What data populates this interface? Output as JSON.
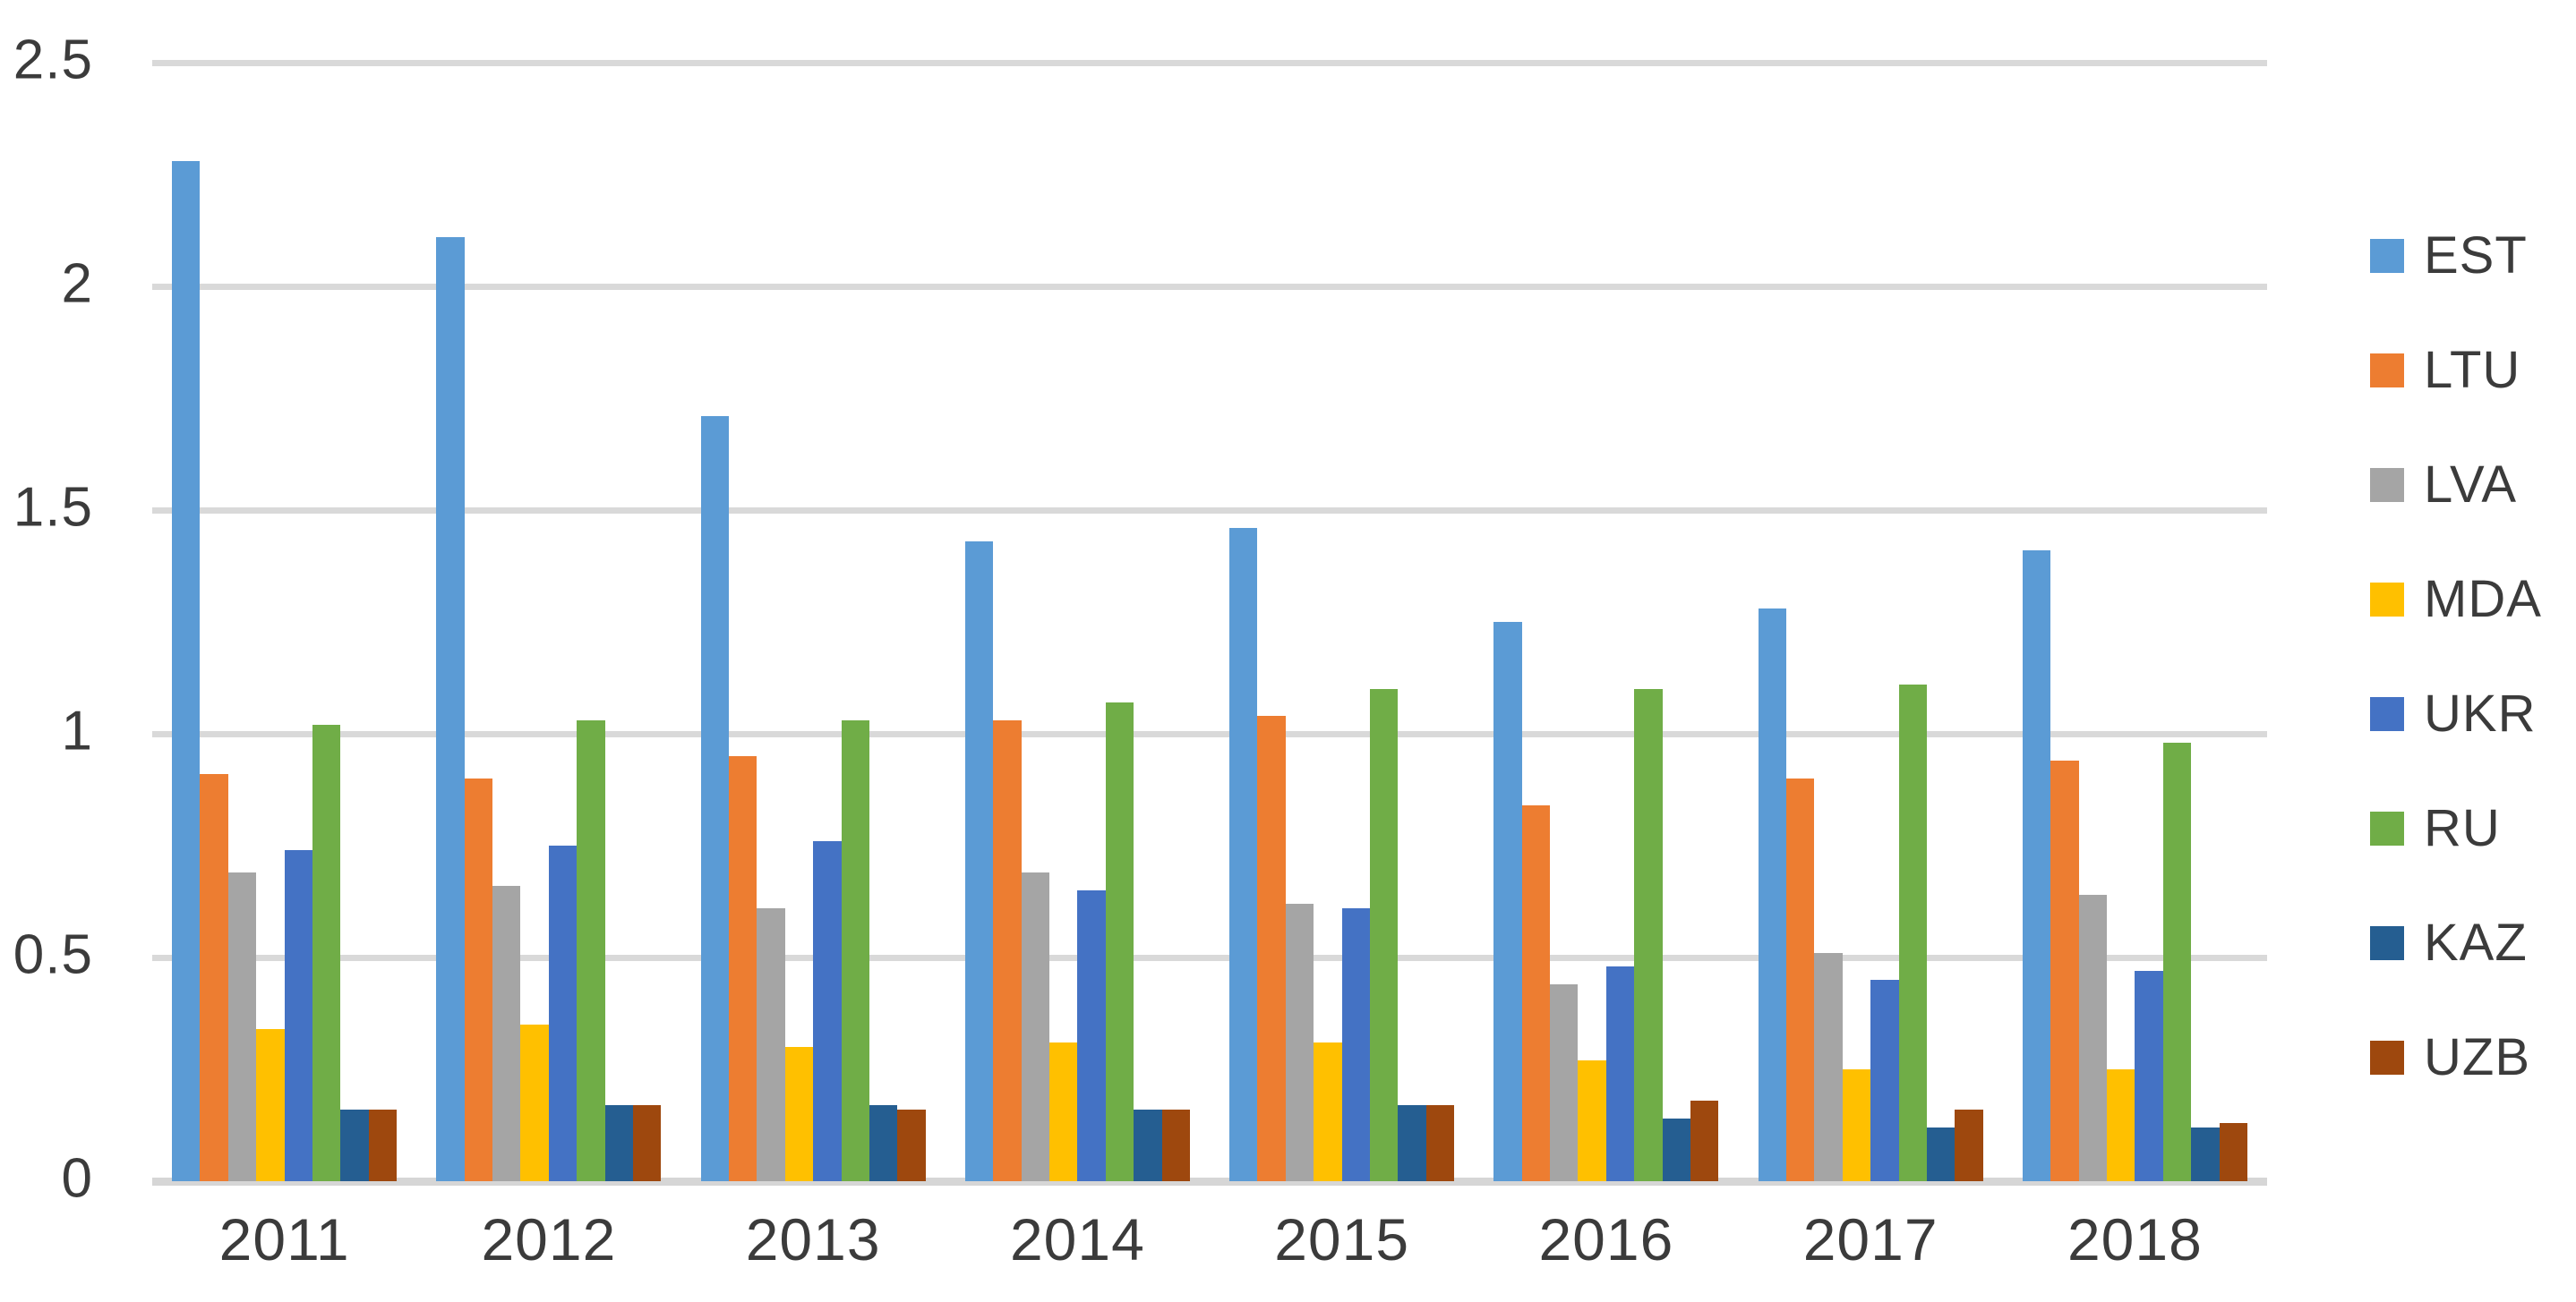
{
  "chart_data": {
    "type": "bar",
    "title": "",
    "xlabel": "",
    "ylabel": "",
    "categories": [
      "2011",
      "2012",
      "2013",
      "2014",
      "2015",
      "2016",
      "2017",
      "2018"
    ],
    "series": [
      {
        "name": "EST",
        "color": "#5B9BD5",
        "values": [
          2.28,
          2.11,
          1.71,
          1.43,
          1.46,
          1.25,
          1.28,
          1.41
        ]
      },
      {
        "name": "LTU",
        "color": "#ED7D31",
        "values": [
          0.91,
          0.9,
          0.95,
          1.03,
          1.04,
          0.84,
          0.9,
          0.94
        ]
      },
      {
        "name": "LVA",
        "color": "#A5A5A5",
        "values": [
          0.69,
          0.66,
          0.61,
          0.69,
          0.62,
          0.44,
          0.51,
          0.64
        ]
      },
      {
        "name": "MDA",
        "color": "#FFC000",
        "values": [
          0.34,
          0.35,
          0.3,
          0.31,
          0.31,
          0.27,
          0.25,
          0.25
        ]
      },
      {
        "name": "UKR",
        "color": "#4472C4",
        "values": [
          0.74,
          0.75,
          0.76,
          0.65,
          0.61,
          0.48,
          0.45,
          0.47
        ]
      },
      {
        "name": "RU",
        "color": "#70AD47",
        "values": [
          1.02,
          1.03,
          1.03,
          1.07,
          1.1,
          1.1,
          1.11,
          0.98
        ]
      },
      {
        "name": "KAZ",
        "color": "#255E91",
        "values": [
          0.16,
          0.17,
          0.17,
          0.16,
          0.17,
          0.14,
          0.12,
          0.12
        ]
      },
      {
        "name": "UZB",
        "color": "#9E480E",
        "values": [
          0.16,
          0.17,
          0.16,
          0.16,
          0.17,
          0.18,
          0.16,
          0.13
        ]
      }
    ],
    "ylim": [
      0,
      2.5
    ],
    "y_tick_labels": [
      "0",
      "0.5",
      "1",
      "1.5",
      "2",
      "2.5"
    ],
    "y_tick_values": [
      0,
      0.5,
      1,
      1.5,
      2,
      2.5
    ],
    "grid": true,
    "legend_position": "right"
  },
  "colors": {
    "gridline": "#d9d9d9",
    "text": "#3b3b3b",
    "background": "#ffffff"
  }
}
